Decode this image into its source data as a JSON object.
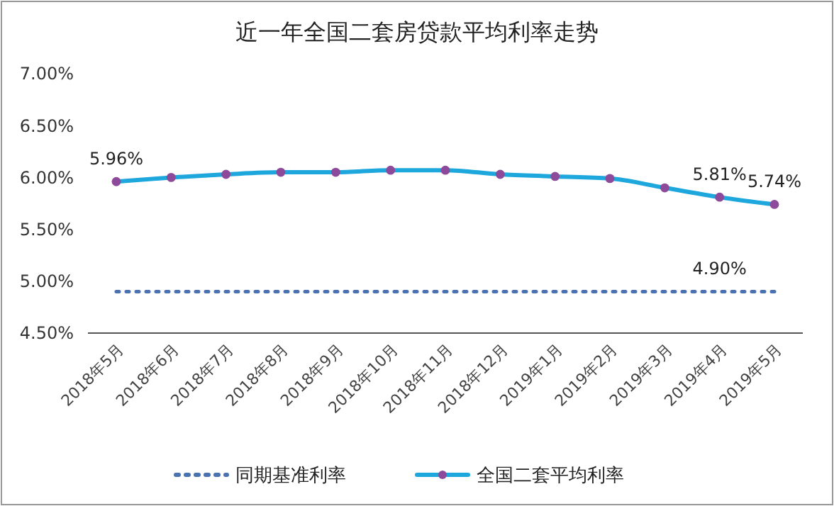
{
  "chart_data": {
    "type": "line",
    "title": "近一年全国二套房贷款平均利率走势",
    "categories": [
      "2018年5月",
      "2018年6月",
      "2018年7月",
      "2018年8月",
      "2018年9月",
      "2018年10月",
      "2018年11月",
      "2018年12月",
      "2019年1月",
      "2019年2月",
      "2019年3月",
      "2019年4月",
      "2019年5月"
    ],
    "series": [
      {
        "name": "同期基准利率",
        "color": "#4a72b0",
        "line_style": "dotted",
        "marker": "none",
        "values": [
          4.9,
          4.9,
          4.9,
          4.9,
          4.9,
          4.9,
          4.9,
          4.9,
          4.9,
          4.9,
          4.9,
          4.9,
          4.9
        ],
        "value_labels": [
          null,
          null,
          null,
          null,
          null,
          null,
          null,
          null,
          null,
          null,
          null,
          "4.90%",
          null
        ]
      },
      {
        "name": "全国二套平均利率",
        "color": "#1ea7dc",
        "line_style": "solid",
        "marker": "circle",
        "values": [
          5.96,
          6.0,
          6.03,
          6.05,
          6.05,
          6.07,
          6.07,
          6.03,
          6.01,
          5.99,
          5.9,
          5.81,
          5.74
        ],
        "value_labels": [
          "5.96%",
          null,
          null,
          null,
          null,
          null,
          null,
          null,
          null,
          null,
          null,
          "5.81%",
          "5.74%"
        ]
      }
    ],
    "ylim": [
      4.5,
      7.0
    ],
    "yticks": [
      {
        "value": 4.5,
        "label": "4.50%"
      },
      {
        "value": 5.0,
        "label": "5.00%"
      },
      {
        "value": 5.5,
        "label": "5.50%"
      },
      {
        "value": 6.0,
        "label": "6.00%"
      },
      {
        "value": 6.5,
        "label": "6.50%"
      },
      {
        "value": 7.0,
        "label": "7.00%"
      }
    ],
    "grid": false,
    "legend": "bottom"
  }
}
